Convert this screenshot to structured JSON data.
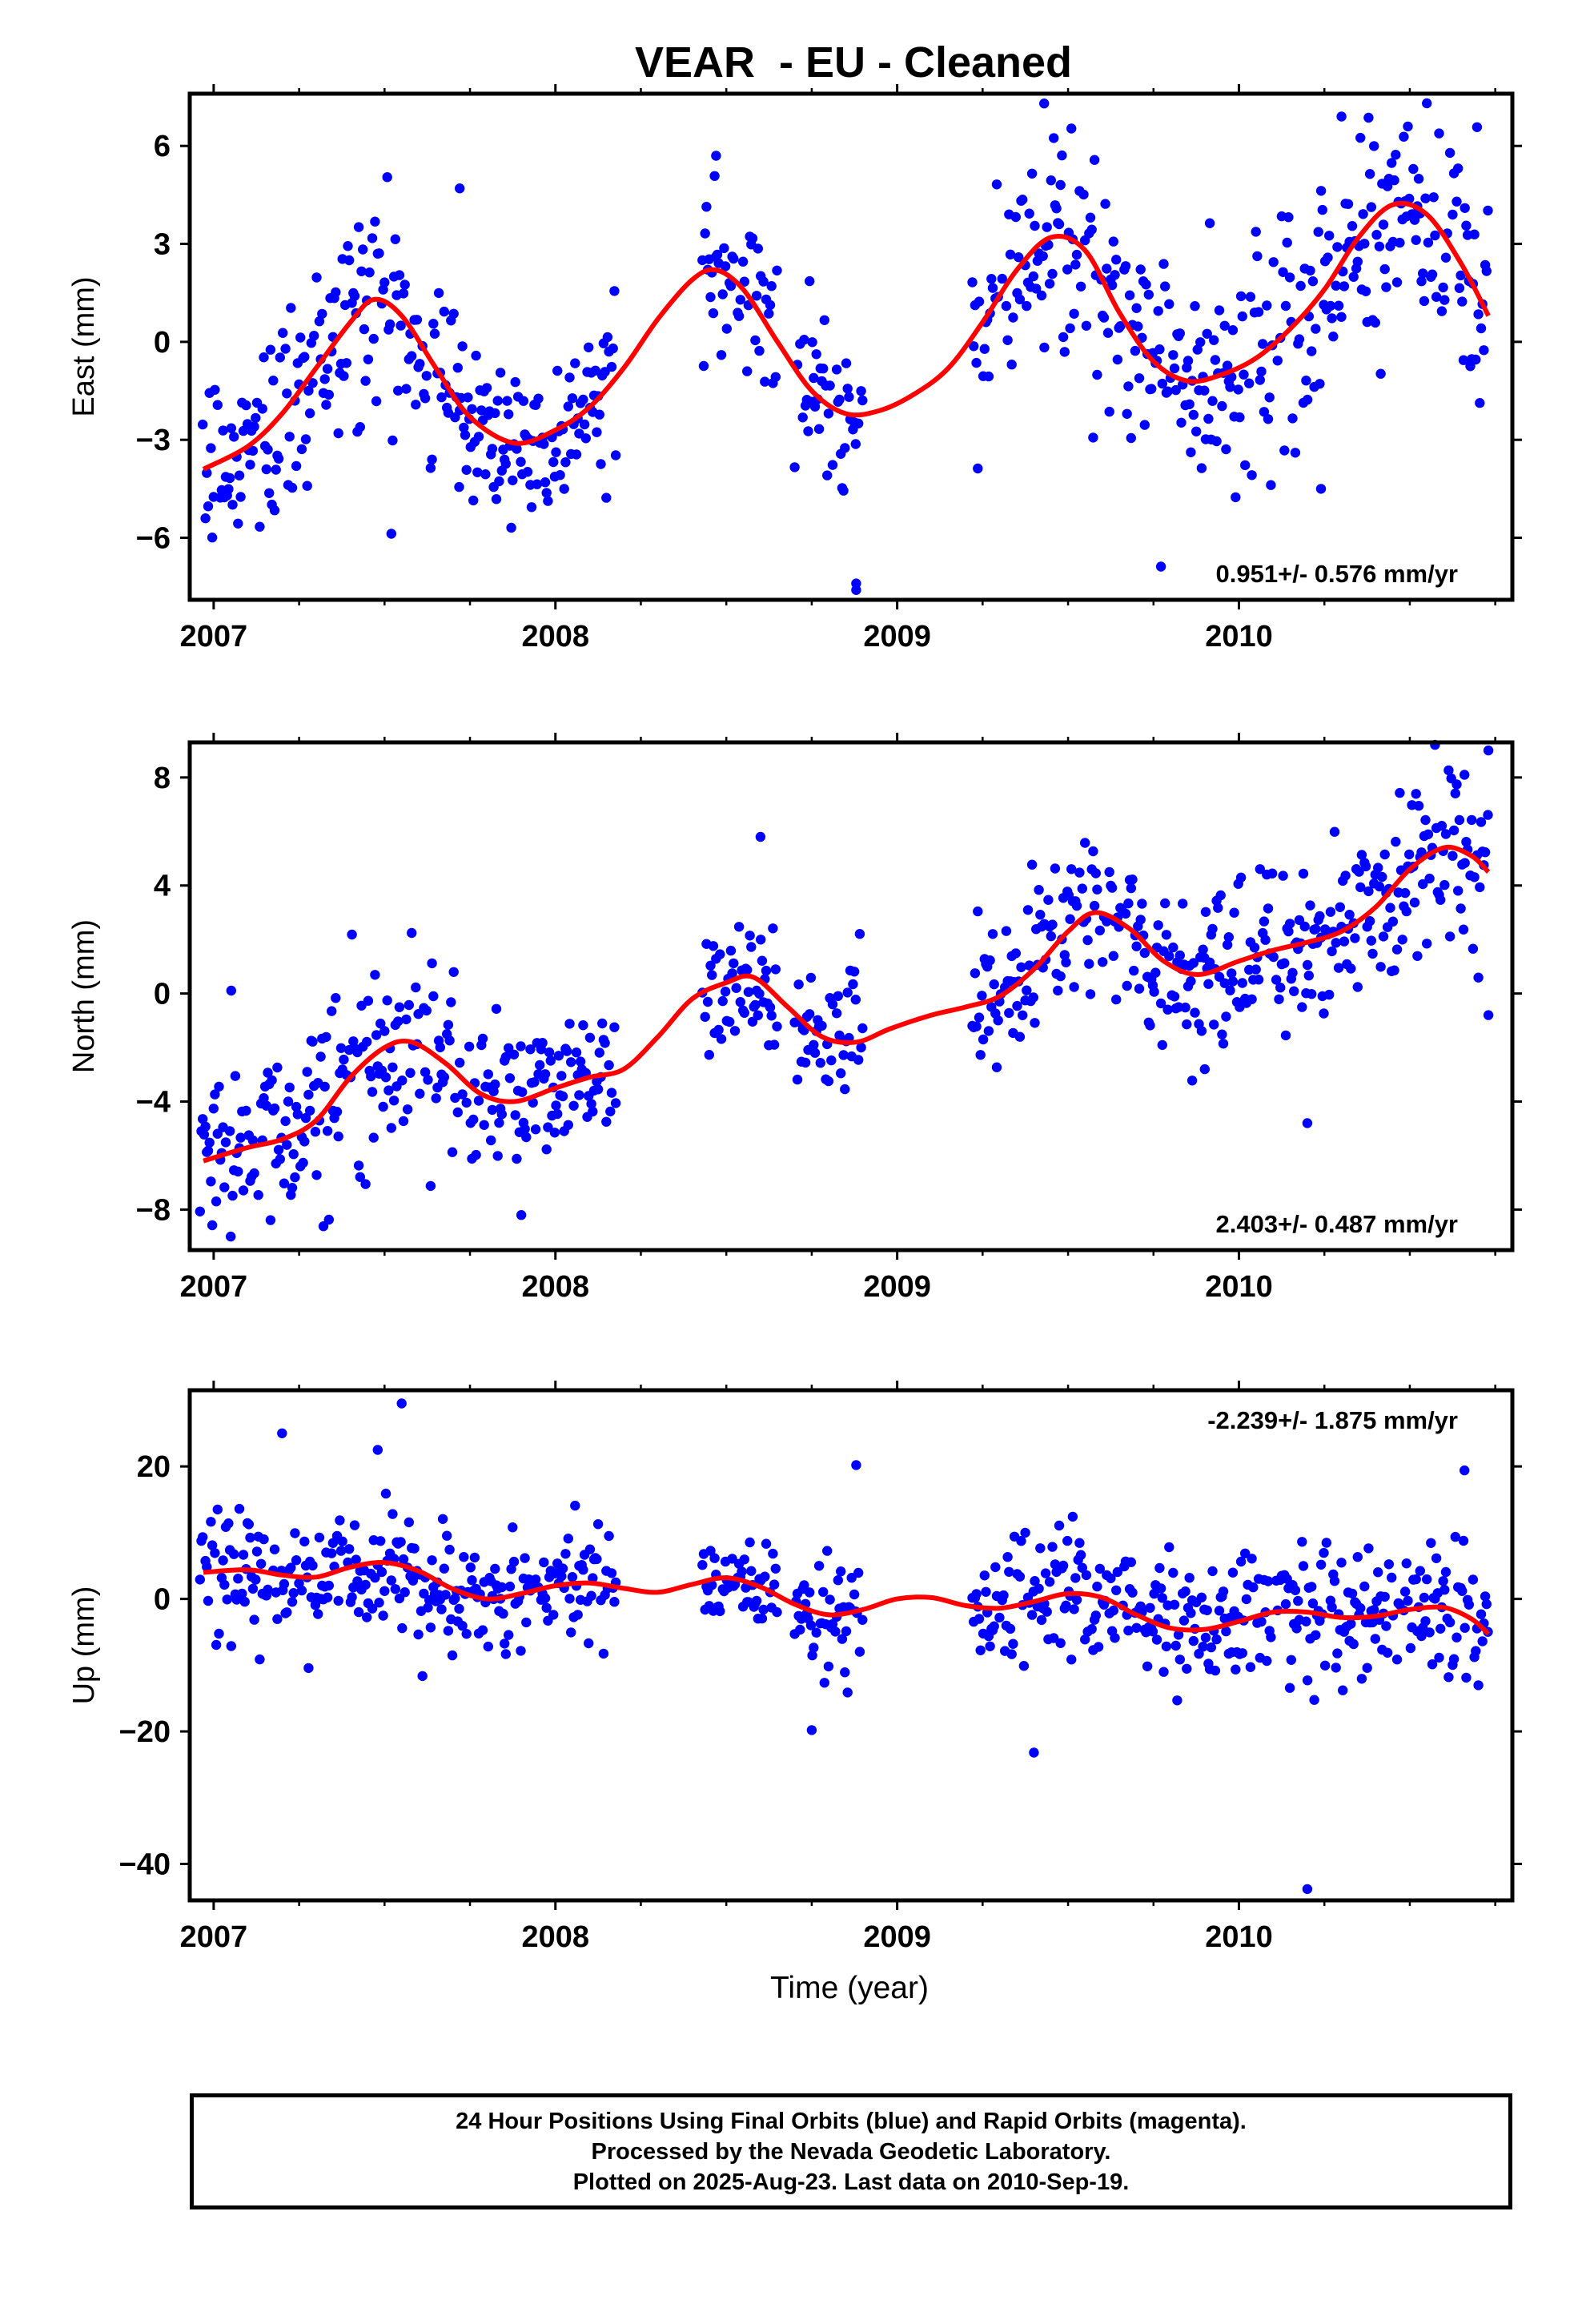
{
  "title": "VEAR  - EU - Cleaned",
  "xlabel": "Time (year)",
  "footer": {
    "line1": "24 Hour Positions Using Final Orbits (blue) and Rapid Orbits (magenta).",
    "line2": "Processed by the Nevada Geodetic Laboratory.",
    "line3": "Plotted on 2025-Aug-23. Last data on 2010-Sep-19."
  },
  "colors": {
    "final_orbits": "#0000ff",
    "fit_curve": "#ff0000",
    "frame": "#000000"
  },
  "chart_data": [
    {
      "type": "scatter",
      "title": "",
      "ylabel": "East (mm)",
      "xlim": [
        2006.93,
        2010.8
      ],
      "ylim": [
        -7.9,
        7.6
      ],
      "xticks": [
        2007,
        2008,
        2009,
        2010
      ],
      "yticks": [
        -6,
        -3,
        0,
        3,
        6
      ],
      "rate_label": "0.951+/- 0.576 mm/yr",
      "rate_position": "bottom-right",
      "fit_curve": {
        "x": [
          2006.97,
          2007.1,
          2007.2,
          2007.3,
          2007.4,
          2007.47,
          2007.55,
          2007.65,
          2007.75,
          2007.88,
          2008.0,
          2008.1,
          2008.2,
          2008.3,
          2008.4,
          2008.47,
          2008.55,
          2008.65,
          2008.75,
          2008.85,
          2008.95,
          2009.05,
          2009.15,
          2009.25,
          2009.35,
          2009.45,
          2009.55,
          2009.65,
          2009.75,
          2009.85,
          2009.95,
          2010.05,
          2010.15,
          2010.25,
          2010.35,
          2010.45,
          2010.55,
          2010.65,
          2010.73
        ],
        "y": [
          -3.9,
          -3.2,
          -2.2,
          -0.8,
          0.6,
          1.3,
          0.8,
          -0.8,
          -2.3,
          -3.1,
          -2.7,
          -2.0,
          -0.8,
          0.7,
          1.9,
          2.2,
          1.6,
          0.0,
          -1.5,
          -2.2,
          -2.1,
          -1.6,
          -0.8,
          0.6,
          2.2,
          3.2,
          2.8,
          0.9,
          -0.6,
          -1.2,
          -1.0,
          -0.5,
          0.4,
          1.6,
          3.2,
          4.2,
          3.9,
          2.4,
          0.8
        ]
      },
      "seasonal": {
        "amplitude": 1.9,
        "phase": -0.2,
        "trend_ref": -0.5,
        "noise_sd": 1.1
      },
      "segments": [
        [
          2006.96,
          2007.72,
          1.7
        ],
        [
          2007.72,
          2008.18,
          1.3
        ],
        [
          2008.43,
          2008.65,
          1.2
        ],
        [
          2008.7,
          2008.9,
          1.4
        ],
        [
          2009.22,
          2010.73,
          1.7
        ]
      ],
      "outliers": [
        [
          2008.88,
          -7.6
        ],
        [
          2008.88,
          -7.4
        ],
        [
          2009.43,
          7.3
        ],
        [
          2010.3,
          6.9
        ],
        [
          2008.47,
          5.7
        ],
        [
          2007.72,
          4.7
        ],
        [
          2010.24,
          -4.5
        ]
      ]
    },
    {
      "type": "scatter",
      "title": "",
      "ylabel": "North (mm)",
      "xlim": [
        2006.93,
        2010.8
      ],
      "ylim": [
        -9.5,
        9.3
      ],
      "xticks": [
        2007,
        2008,
        2009,
        2010
      ],
      "yticks": [
        -8,
        -4,
        0,
        4,
        8
      ],
      "rate_label": "2.403+/- 0.487 mm/yr",
      "rate_position": "bottom-right",
      "fit_curve": {
        "x": [
          2006.97,
          2007.1,
          2007.2,
          2007.3,
          2007.4,
          2007.5,
          2007.58,
          2007.68,
          2007.78,
          2007.88,
          2008.0,
          2008.1,
          2008.2,
          2008.3,
          2008.4,
          2008.5,
          2008.58,
          2008.68,
          2008.78,
          2008.88,
          2008.98,
          2009.1,
          2009.2,
          2009.3,
          2009.4,
          2009.5,
          2009.58,
          2009.68,
          2009.78,
          2009.88,
          2010.0,
          2010.1,
          2010.2,
          2010.3,
          2010.4,
          2010.5,
          2010.6,
          2010.68,
          2010.73
        ],
        "y": [
          -6.2,
          -5.7,
          -5.4,
          -4.7,
          -3.1,
          -2.0,
          -1.8,
          -2.6,
          -3.7,
          -4.0,
          -3.5,
          -3.1,
          -2.8,
          -1.6,
          -0.2,
          0.4,
          0.6,
          -0.5,
          -1.6,
          -1.8,
          -1.3,
          -0.8,
          -0.5,
          -0.1,
          0.9,
          2.3,
          3.0,
          2.4,
          1.2,
          0.7,
          1.2,
          1.6,
          1.9,
          2.3,
          3.2,
          4.6,
          5.4,
          5.1,
          4.5
        ]
      },
      "seasonal": {
        "amplitude": 1.6,
        "phase": 1.1,
        "trend_ref": -1.6,
        "noise_sd": 1.0
      },
      "segments": [
        [
          2006.96,
          2007.72,
          1.7
        ],
        [
          2007.72,
          2008.18,
          1.3
        ],
        [
          2008.43,
          2008.65,
          1.2
        ],
        [
          2008.7,
          2008.9,
          1.4
        ],
        [
          2009.22,
          2010.73,
          1.7
        ]
      ],
      "outliers": [
        [
          2007.05,
          -9.0
        ],
        [
          2007.9,
          -8.2
        ],
        [
          2010.73,
          9.0
        ],
        [
          2010.66,
          8.1
        ],
        [
          2010.2,
          -4.8
        ],
        [
          2009.9,
          -2.8
        ],
        [
          2008.6,
          5.8
        ],
        [
          2010.73,
          -0.8
        ]
      ]
    },
    {
      "type": "scatter",
      "title": "",
      "ylabel": "Up (mm)",
      "xlim": [
        2006.93,
        2010.8
      ],
      "ylim": [
        -45.5,
        31.5
      ],
      "xticks": [
        2007,
        2008,
        2009,
        2010
      ],
      "yticks": [
        -40,
        -20,
        0,
        20
      ],
      "rate_label": "-2.239+/- 1.875 mm/yr",
      "rate_position": "top-right",
      "fit_curve": {
        "x": [
          2006.97,
          2007.1,
          2007.2,
          2007.3,
          2007.4,
          2007.5,
          2007.6,
          2007.7,
          2007.8,
          2007.9,
          2008.0,
          2008.1,
          2008.2,
          2008.3,
          2008.4,
          2008.5,
          2008.6,
          2008.7,
          2008.8,
          2008.9,
          2009.0,
          2009.1,
          2009.2,
          2009.3,
          2009.4,
          2009.5,
          2009.6,
          2009.7,
          2009.8,
          2009.9,
          2010.0,
          2010.1,
          2010.2,
          2010.3,
          2010.4,
          2010.5,
          2010.6,
          2010.68,
          2010.73
        ],
        "y": [
          4.0,
          4.4,
          3.6,
          3.3,
          4.8,
          5.5,
          4.2,
          1.5,
          0.0,
          0.8,
          2.0,
          2.4,
          1.6,
          1.0,
          2.2,
          3.2,
          1.8,
          -0.8,
          -2.4,
          -1.6,
          0.0,
          0.2,
          -1.0,
          -1.4,
          -0.4,
          0.8,
          0.2,
          -2.4,
          -4.4,
          -4.6,
          -3.4,
          -2.0,
          -2.0,
          -2.8,
          -2.6,
          -1.6,
          -1.3,
          -3.0,
          -5.3
        ]
      },
      "seasonal": {
        "amplitude": 2.0,
        "phase": 0.3,
        "trend_ref": 0.5,
        "noise_sd": 5.5
      },
      "segments": [
        [
          2006.96,
          2007.72,
          5.0
        ],
        [
          2007.72,
          2008.18,
          4.0
        ],
        [
          2008.43,
          2008.65,
          3.5
        ],
        [
          2008.7,
          2008.9,
          4.0
        ],
        [
          2009.22,
          2010.73,
          5.0
        ]
      ],
      "outliers": [
        [
          2007.55,
          29.5
        ],
        [
          2007.48,
          22.5
        ],
        [
          2007.2,
          25.0
        ],
        [
          2008.88,
          20.2
        ],
        [
          2010.2,
          -43.8
        ],
        [
          2009.4,
          -23.2
        ],
        [
          2008.75,
          -19.8
        ],
        [
          2010.66,
          19.4
        ]
      ]
    }
  ]
}
